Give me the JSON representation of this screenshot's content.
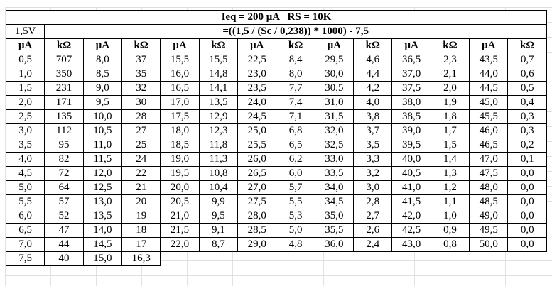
{
  "table": {
    "title": "Ieq = 200 μA   RS = 10K",
    "voltage_label": "1,5V",
    "formula": "=((1,5 / (Sc / 0,238)) * 1000) - 7,5",
    "column_headers": [
      "μA",
      "kΩ",
      "μA",
      "kΩ",
      "μA",
      "kΩ",
      "μA",
      "kΩ",
      "μA",
      "kΩ",
      "μA",
      "kΩ",
      "μA",
      "kΩ"
    ],
    "column_count": 14,
    "rows": [
      [
        "0,5",
        "707",
        "8,0",
        "37",
        "15,5",
        "15,5",
        "22,5",
        "8,4",
        "29,5",
        "4,6",
        "36,5",
        "2,3",
        "43,5",
        "0,7"
      ],
      [
        "1,0",
        "350",
        "8,5",
        "35",
        "16,0",
        "14,8",
        "23,0",
        "8,0",
        "30,0",
        "4,4",
        "37,0",
        "2,1",
        "44,0",
        "0,6"
      ],
      [
        "1,5",
        "231",
        "9,0",
        "32",
        "16,5",
        "14,1",
        "23,5",
        "7,7",
        "30,5",
        "4,2",
        "37,5",
        "2,0",
        "44,5",
        "0,5"
      ],
      [
        "2,0",
        "171",
        "9,5",
        "30",
        "17,0",
        "13,5",
        "24,0",
        "7,4",
        "31,0",
        "4,0",
        "38,0",
        "1,9",
        "45,0",
        "0,4"
      ],
      [
        "2,5",
        "135",
        "10,0",
        "28",
        "17,5",
        "12,9",
        "24,5",
        "7,1",
        "31,5",
        "3,8",
        "38,5",
        "1,8",
        "45,5",
        "0,3"
      ],
      [
        "3,0",
        "112",
        "10,5",
        "27",
        "18,0",
        "12,3",
        "25,0",
        "6,8",
        "32,0",
        "3,7",
        "39,0",
        "1,7",
        "46,0",
        "0,3"
      ],
      [
        "3,5",
        "95",
        "11,0",
        "25",
        "18,5",
        "11,8",
        "25,5",
        "6,5",
        "32,5",
        "3,5",
        "39,5",
        "1,5",
        "46,5",
        "0,2"
      ],
      [
        "4,0",
        "82",
        "11,5",
        "24",
        "19,0",
        "11,3",
        "26,0",
        "6,2",
        "33,0",
        "3,3",
        "40,0",
        "1,4",
        "47,0",
        "0,1"
      ],
      [
        "4,5",
        "72",
        "12,0",
        "22",
        "19,5",
        "10,8",
        "26,5",
        "6,0",
        "33,5",
        "3,2",
        "40,5",
        "1,3",
        "47,5",
        "0,0"
      ],
      [
        "5,0",
        "64",
        "12,5",
        "21",
        "20,0",
        "10,4",
        "27,0",
        "5,7",
        "34,0",
        "3,0",
        "41,0",
        "1,2",
        "48,0",
        "0,0"
      ],
      [
        "5,5",
        "57",
        "13,0",
        "20",
        "20,5",
        "9,9",
        "27,5",
        "5,5",
        "34,5",
        "2,8",
        "41,5",
        "1,1",
        "48,5",
        "0,0"
      ],
      [
        "6,0",
        "52",
        "13,5",
        "19",
        "21,0",
        "9,5",
        "28,0",
        "5,3",
        "35,0",
        "2,7",
        "42,0",
        "1,0",
        "49,0",
        "0,0"
      ],
      [
        "6,5",
        "47",
        "14,0",
        "18",
        "21,5",
        "9,1",
        "28,5",
        "5,0",
        "35,5",
        "2,6",
        "42,5",
        "0,9",
        "49,5",
        "0,0"
      ],
      [
        "7,0",
        "44",
        "14,5",
        "17",
        "22,0",
        "8,7",
        "29,0",
        "4,8",
        "36,0",
        "2,4",
        "43,0",
        "0,8",
        "50,0",
        "0,0"
      ],
      [
        "7,5",
        "40",
        "15,0",
        "16,3"
      ]
    ]
  }
}
